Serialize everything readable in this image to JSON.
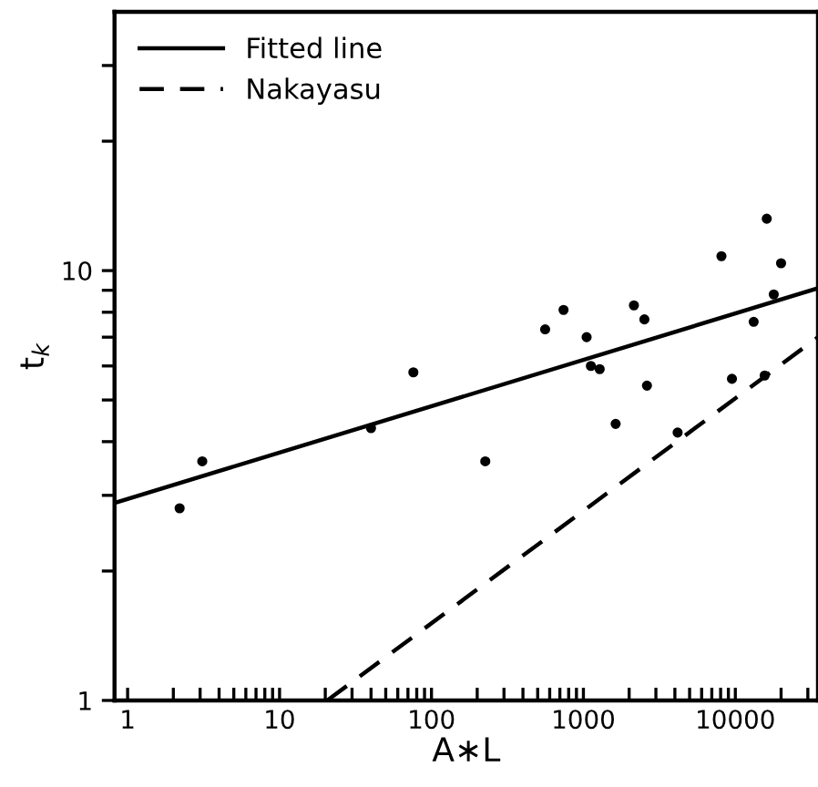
{
  "chart_data": {
    "type": "scatter",
    "xlabel": "A∗L",
    "ylabel": "t$_{k}$",
    "log": "xy",
    "xlim": [
      0.82,
      35000
    ],
    "ylim": [
      1,
      40
    ],
    "xticks": [
      1,
      {
        "value": 2,
        "label": null
      },
      {
        "value": 3,
        "label": null
      },
      {
        "value": 4,
        "label": null
      },
      {
        "value": 5,
        "label": null
      },
      {
        "value": 6,
        "label": null
      },
      {
        "value": 7,
        "label": null
      },
      {
        "value": 8,
        "label": null
      },
      {
        "value": 9,
        "label": null
      },
      10,
      {
        "value": 20,
        "label": null
      },
      {
        "value": 30,
        "label": null
      },
      {
        "value": 40,
        "label": null
      },
      {
        "value": 50,
        "label": null
      },
      {
        "value": 60,
        "label": null
      },
      {
        "value": 70,
        "label": null
      },
      {
        "value": 80,
        "label": null
      },
      {
        "value": 90,
        "label": null
      },
      100,
      {
        "value": 200,
        "label": null
      },
      {
        "value": 300,
        "label": null
      },
      {
        "value": 400,
        "label": null
      },
      {
        "value": 500,
        "label": null
      },
      {
        "value": 600,
        "label": null
      },
      {
        "value": 700,
        "label": null
      },
      {
        "value": 800,
        "label": null
      },
      {
        "value": 900,
        "label": null
      },
      1000,
      {
        "value": 2000,
        "label": null
      },
      {
        "value": 3000,
        "label": null
      },
      {
        "value": 4000,
        "label": null
      },
      {
        "value": 5000,
        "label": null
      },
      {
        "value": 6000,
        "label": null
      },
      {
        "value": 7000,
        "label": null
      },
      {
        "value": 8000,
        "label": null
      },
      {
        "value": 9000,
        "label": null
      },
      10000,
      {
        "value": 20000,
        "label": null
      },
      {
        "value": 30000,
        "label": null
      }
    ],
    "yticks": [
      1,
      {
        "value": 2,
        "label": null
      },
      {
        "value": 3,
        "label": null
      },
      {
        "value": 4,
        "label": null
      },
      {
        "value": 5,
        "label": null
      },
      {
        "value": 6,
        "label": null
      },
      {
        "value": 7,
        "label": null
      },
      {
        "value": 8,
        "label": null
      },
      {
        "value": 9,
        "label": null
      },
      10,
      {
        "value": 20,
        "label": null
      },
      {
        "value": 30,
        "label": null
      }
    ],
    "grid": false,
    "legend": "top left",
    "series": [
      {
        "color": "#000000",
        "marker": "circle",
        "x": [
          2.2,
          3.1,
          40,
          76,
          226,
          560,
          740,
          1050,
          1120,
          1280,
          1630,
          2150,
          2520,
          2620,
          4170,
          8100,
          9500,
          13200,
          15600,
          16100,
          17900,
          20000
        ],
        "values": [
          2.8,
          3.6,
          4.3,
          5.8,
          3.6,
          7.3,
          8.1,
          7.0,
          6.0,
          5.9,
          4.4,
          8.3,
          7.7,
          5.4,
          4.2,
          10.8,
          5.6,
          7.6,
          5.7,
          13.2,
          8.8,
          10.4
        ]
      },
      {
        "type": "line",
        "name": "Fitted line",
        "color": "#000000",
        "line_style": "solid",
        "marker": "none",
        "x": [
          0.82,
          35000
        ],
        "values": [
          2.88,
          9.1
        ]
      },
      {
        "type": "line",
        "name": "Nakayasu",
        "color": "#000000",
        "line_style": "dashed",
        "marker": "none",
        "x": [
          20.6,
          35000
        ],
        "values": [
          1,
          7.0
        ]
      }
    ]
  }
}
